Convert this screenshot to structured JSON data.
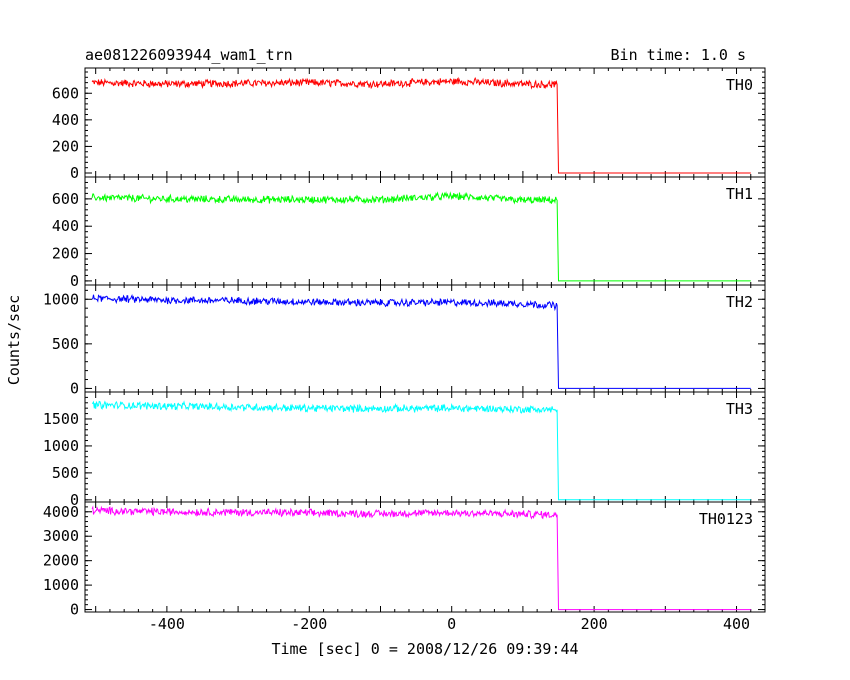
{
  "chart_data": {
    "type": "line",
    "title": "ae081226093944_wam1_trn",
    "subtitle": "Bin time: 1.0 s",
    "xlabel": "Time [sec] 0 = 2008/12/26 09:39:44",
    "ylabel": "Counts/sec",
    "xlim": [
      -515,
      440
    ],
    "x_ticks": [
      "-400",
      "-200",
      "0",
      "200",
      "400"
    ],
    "x_tick_values": [
      -400,
      -200,
      0,
      200,
      400
    ],
    "grid": false,
    "panels": [
      {
        "name": "TH0",
        "color": "#ff0000",
        "ylim": [
          -30,
          790
        ],
        "y_ticks": [
          0,
          200,
          400,
          600
        ],
        "y_tick_labels": [
          "0",
          "200",
          "400",
          "600"
        ],
        "points": [
          [
            -505,
            680
          ],
          [
            -400,
            670
          ],
          [
            -300,
            675
          ],
          [
            -200,
            680
          ],
          [
            -100,
            670
          ],
          [
            0,
            690
          ],
          [
            100,
            670
          ],
          [
            148,
            665
          ],
          [
            150,
            0
          ],
          [
            420,
            0
          ]
        ]
      },
      {
        "name": "TH1",
        "color": "#00ff00",
        "ylim": [
          -30,
          760
        ],
        "y_ticks": [
          0,
          200,
          400,
          600
        ],
        "y_tick_labels": [
          "0",
          "200",
          "400",
          "600"
        ],
        "points": [
          [
            -505,
            610
          ],
          [
            -400,
            600
          ],
          [
            -300,
            595
          ],
          [
            -200,
            595
          ],
          [
            -100,
            595
          ],
          [
            0,
            620
          ],
          [
            100,
            590
          ],
          [
            148,
            590
          ],
          [
            150,
            0
          ],
          [
            420,
            0
          ]
        ]
      },
      {
        "name": "TH2",
        "color": "#0000ff",
        "ylim": [
          -40,
          1160
        ],
        "y_ticks": [
          0,
          500,
          1000
        ],
        "y_tick_labels": [
          "0",
          "500",
          "1000"
        ],
        "points": [
          [
            -505,
            1010
          ],
          [
            -400,
            990
          ],
          [
            -300,
            985
          ],
          [
            -200,
            970
          ],
          [
            -100,
            960
          ],
          [
            0,
            965
          ],
          [
            100,
            950
          ],
          [
            148,
            930
          ],
          [
            150,
            0
          ],
          [
            420,
            0
          ]
        ]
      },
      {
        "name": "TH3",
        "color": "#00ffff",
        "ylim": [
          -40,
          2000
        ],
        "y_ticks": [
          0,
          500,
          1000,
          1500
        ],
        "y_tick_labels": [
          "0",
          "500",
          "1000",
          "1500"
        ],
        "points": [
          [
            -505,
            1760
          ],
          [
            -400,
            1740
          ],
          [
            -300,
            1720
          ],
          [
            -200,
            1700
          ],
          [
            -100,
            1690
          ],
          [
            0,
            1700
          ],
          [
            100,
            1680
          ],
          [
            148,
            1670
          ],
          [
            150,
            0
          ],
          [
            420,
            0
          ]
        ]
      },
      {
        "name": "TH0123",
        "color": "#ff00ff",
        "ylim": [
          -100,
          4400
        ],
        "y_ticks": [
          0,
          1000,
          2000,
          3000,
          4000
        ],
        "y_tick_labels": [
          "0",
          "1000",
          "2000",
          "3000",
          "4000"
        ],
        "points": [
          [
            -505,
            4050
          ],
          [
            -400,
            4000
          ],
          [
            -300,
            3980
          ],
          [
            -200,
            3950
          ],
          [
            -100,
            3920
          ],
          [
            0,
            3960
          ],
          [
            100,
            3900
          ],
          [
            148,
            3880
          ],
          [
            150,
            0
          ],
          [
            420,
            0
          ]
        ]
      }
    ]
  }
}
